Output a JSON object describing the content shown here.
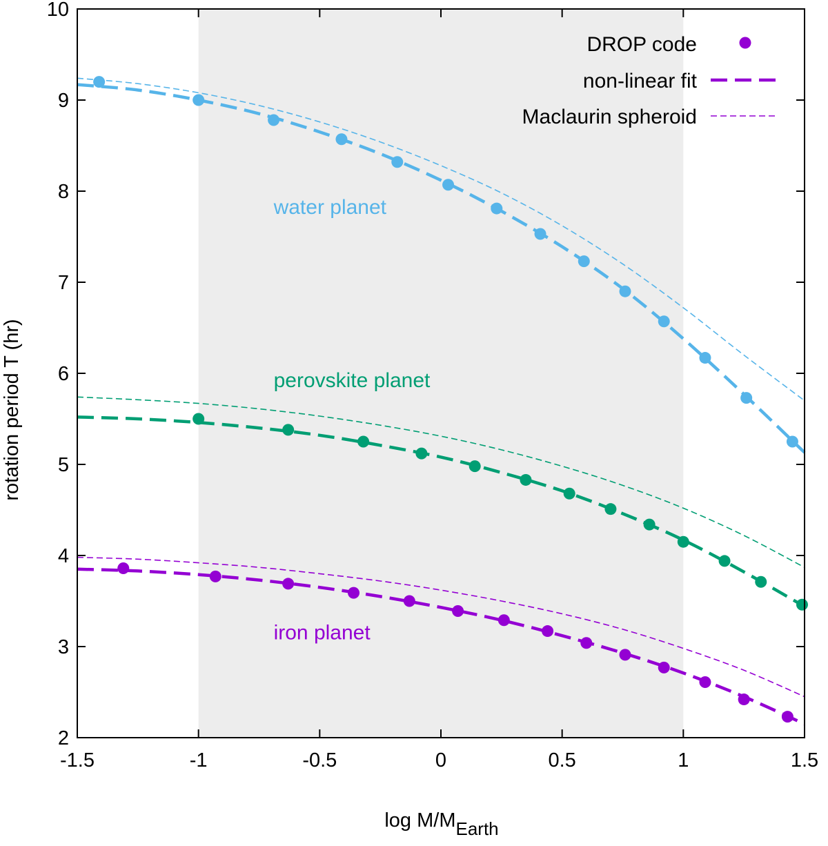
{
  "chart_data": {
    "type": "line",
    "xlabel_main": "log M/M",
    "xlabel_sub": "Earth",
    "ylabel": "rotation period T (hr)",
    "xlim": [
      -1.5,
      1.5
    ],
    "ylim": [
      2,
      10
    ],
    "xticks": [
      -1.5,
      -1,
      -0.5,
      0,
      0.5,
      1,
      1.5
    ],
    "xtick_labels": [
      "-1.5",
      "-1",
      "-0.5",
      "0",
      "0.5",
      "1",
      "1.5"
    ],
    "yticks": [
      2,
      3,
      4,
      5,
      6,
      7,
      8,
      9,
      10
    ],
    "ytick_labels": [
      "2",
      "3",
      "4",
      "5",
      "6",
      "7",
      "8",
      "9",
      "10"
    ],
    "shaded_region": [
      -1,
      1
    ],
    "legend": [
      {
        "label": "DROP code",
        "style": "points"
      },
      {
        "label": "non-linear fit",
        "style": "thick-dashed"
      },
      {
        "label": "Maclaurin spheroid",
        "style": "thin-dashed"
      }
    ],
    "legend_color": "#9400d3",
    "series": [
      {
        "name": "water planet",
        "color": "#56b4e9",
        "annotation": {
          "text": "water planet",
          "x": -0.69,
          "y": 7.75
        },
        "points": [
          [
            -1.41,
            9.2
          ],
          [
            -1.0,
            9.0
          ],
          [
            -0.69,
            8.78
          ],
          [
            -0.41,
            8.57
          ],
          [
            -0.18,
            8.32
          ],
          [
            0.03,
            8.07
          ],
          [
            0.23,
            7.81
          ],
          [
            0.41,
            7.53
          ],
          [
            0.59,
            7.23
          ],
          [
            0.76,
            6.9
          ],
          [
            0.92,
            6.57
          ],
          [
            1.09,
            6.17
          ],
          [
            1.26,
            5.73
          ],
          [
            1.45,
            5.25
          ]
        ],
        "fit": [
          [
            -1.5,
            9.17
          ],
          [
            -1.25,
            9.11
          ],
          [
            -1.0,
            9.0
          ],
          [
            -0.75,
            8.85
          ],
          [
            -0.5,
            8.65
          ],
          [
            -0.25,
            8.41
          ],
          [
            0.0,
            8.12
          ],
          [
            0.25,
            7.78
          ],
          [
            0.5,
            7.39
          ],
          [
            0.75,
            6.93
          ],
          [
            1.0,
            6.38
          ],
          [
            1.25,
            5.77
          ],
          [
            1.5,
            5.13
          ]
        ],
        "maclaurin": [
          [
            -1.5,
            9.24
          ],
          [
            -1.25,
            9.18
          ],
          [
            -1.0,
            9.08
          ],
          [
            -0.75,
            8.94
          ],
          [
            -0.5,
            8.76
          ],
          [
            -0.25,
            8.54
          ],
          [
            0.0,
            8.28
          ],
          [
            0.25,
            7.98
          ],
          [
            0.5,
            7.62
          ],
          [
            0.75,
            7.2
          ],
          [
            1.0,
            6.72
          ],
          [
            1.25,
            6.2
          ],
          [
            1.5,
            5.7
          ]
        ]
      },
      {
        "name": "perovskite planet",
        "color": "#009e73",
        "annotation": {
          "text": "perovskite planet",
          "x": -0.69,
          "y": 5.85
        },
        "points": [
          [
            -1.0,
            5.5
          ],
          [
            -0.63,
            5.38
          ],
          [
            -0.32,
            5.25
          ],
          [
            -0.08,
            5.12
          ],
          [
            0.14,
            4.98
          ],
          [
            0.35,
            4.83
          ],
          [
            0.53,
            4.68
          ],
          [
            0.7,
            4.51
          ],
          [
            0.86,
            4.34
          ],
          [
            1.0,
            4.15
          ],
          [
            1.17,
            3.94
          ],
          [
            1.32,
            3.71
          ],
          [
            1.49,
            3.46
          ]
        ],
        "fit": [
          [
            -1.5,
            5.52
          ],
          [
            -1.25,
            5.5
          ],
          [
            -1.0,
            5.46
          ],
          [
            -0.75,
            5.4
          ],
          [
            -0.5,
            5.32
          ],
          [
            -0.25,
            5.21
          ],
          [
            0.0,
            5.08
          ],
          [
            0.25,
            4.91
          ],
          [
            0.5,
            4.71
          ],
          [
            0.75,
            4.46
          ],
          [
            1.0,
            4.17
          ],
          [
            1.25,
            3.82
          ],
          [
            1.5,
            3.44
          ]
        ],
        "maclaurin": [
          [
            -1.5,
            5.74
          ],
          [
            -1.25,
            5.71
          ],
          [
            -1.0,
            5.67
          ],
          [
            -0.75,
            5.61
          ],
          [
            -0.5,
            5.53
          ],
          [
            -0.25,
            5.43
          ],
          [
            0.0,
            5.31
          ],
          [
            0.25,
            5.16
          ],
          [
            0.5,
            4.98
          ],
          [
            0.75,
            4.77
          ],
          [
            1.0,
            4.52
          ],
          [
            1.25,
            4.22
          ],
          [
            1.5,
            3.87
          ]
        ]
      },
      {
        "name": "iron planet",
        "color": "#9400d3",
        "annotation": {
          "text": "iron planet",
          "x": -0.69,
          "y": 3.08
        },
        "points": [
          [
            -1.31,
            3.86
          ],
          [
            -0.93,
            3.77
          ],
          [
            -0.63,
            3.69
          ],
          [
            -0.36,
            3.59
          ],
          [
            -0.13,
            3.5
          ],
          [
            0.07,
            3.39
          ],
          [
            0.26,
            3.29
          ],
          [
            0.44,
            3.17
          ],
          [
            0.6,
            3.04
          ],
          [
            0.76,
            2.91
          ],
          [
            0.92,
            2.77
          ],
          [
            1.09,
            2.61
          ],
          [
            1.25,
            2.42
          ],
          [
            1.43,
            2.23
          ]
        ],
        "fit": [
          [
            -1.5,
            3.85
          ],
          [
            -1.25,
            3.83
          ],
          [
            -1.0,
            3.79
          ],
          [
            -0.75,
            3.73
          ],
          [
            -0.5,
            3.65
          ],
          [
            -0.25,
            3.55
          ],
          [
            0.0,
            3.43
          ],
          [
            0.25,
            3.29
          ],
          [
            0.5,
            3.12
          ],
          [
            0.75,
            2.93
          ],
          [
            1.0,
            2.71
          ],
          [
            1.25,
            2.45
          ],
          [
            1.5,
            2.15
          ]
        ],
        "maclaurin": [
          [
            -1.5,
            3.98
          ],
          [
            -1.25,
            3.96
          ],
          [
            -1.0,
            3.92
          ],
          [
            -0.75,
            3.87
          ],
          [
            -0.5,
            3.8
          ],
          [
            -0.25,
            3.72
          ],
          [
            0.0,
            3.62
          ],
          [
            0.25,
            3.5
          ],
          [
            0.5,
            3.36
          ],
          [
            0.75,
            3.19
          ],
          [
            1.0,
            2.98
          ],
          [
            1.25,
            2.74
          ],
          [
            1.5,
            2.45
          ]
        ]
      }
    ]
  }
}
